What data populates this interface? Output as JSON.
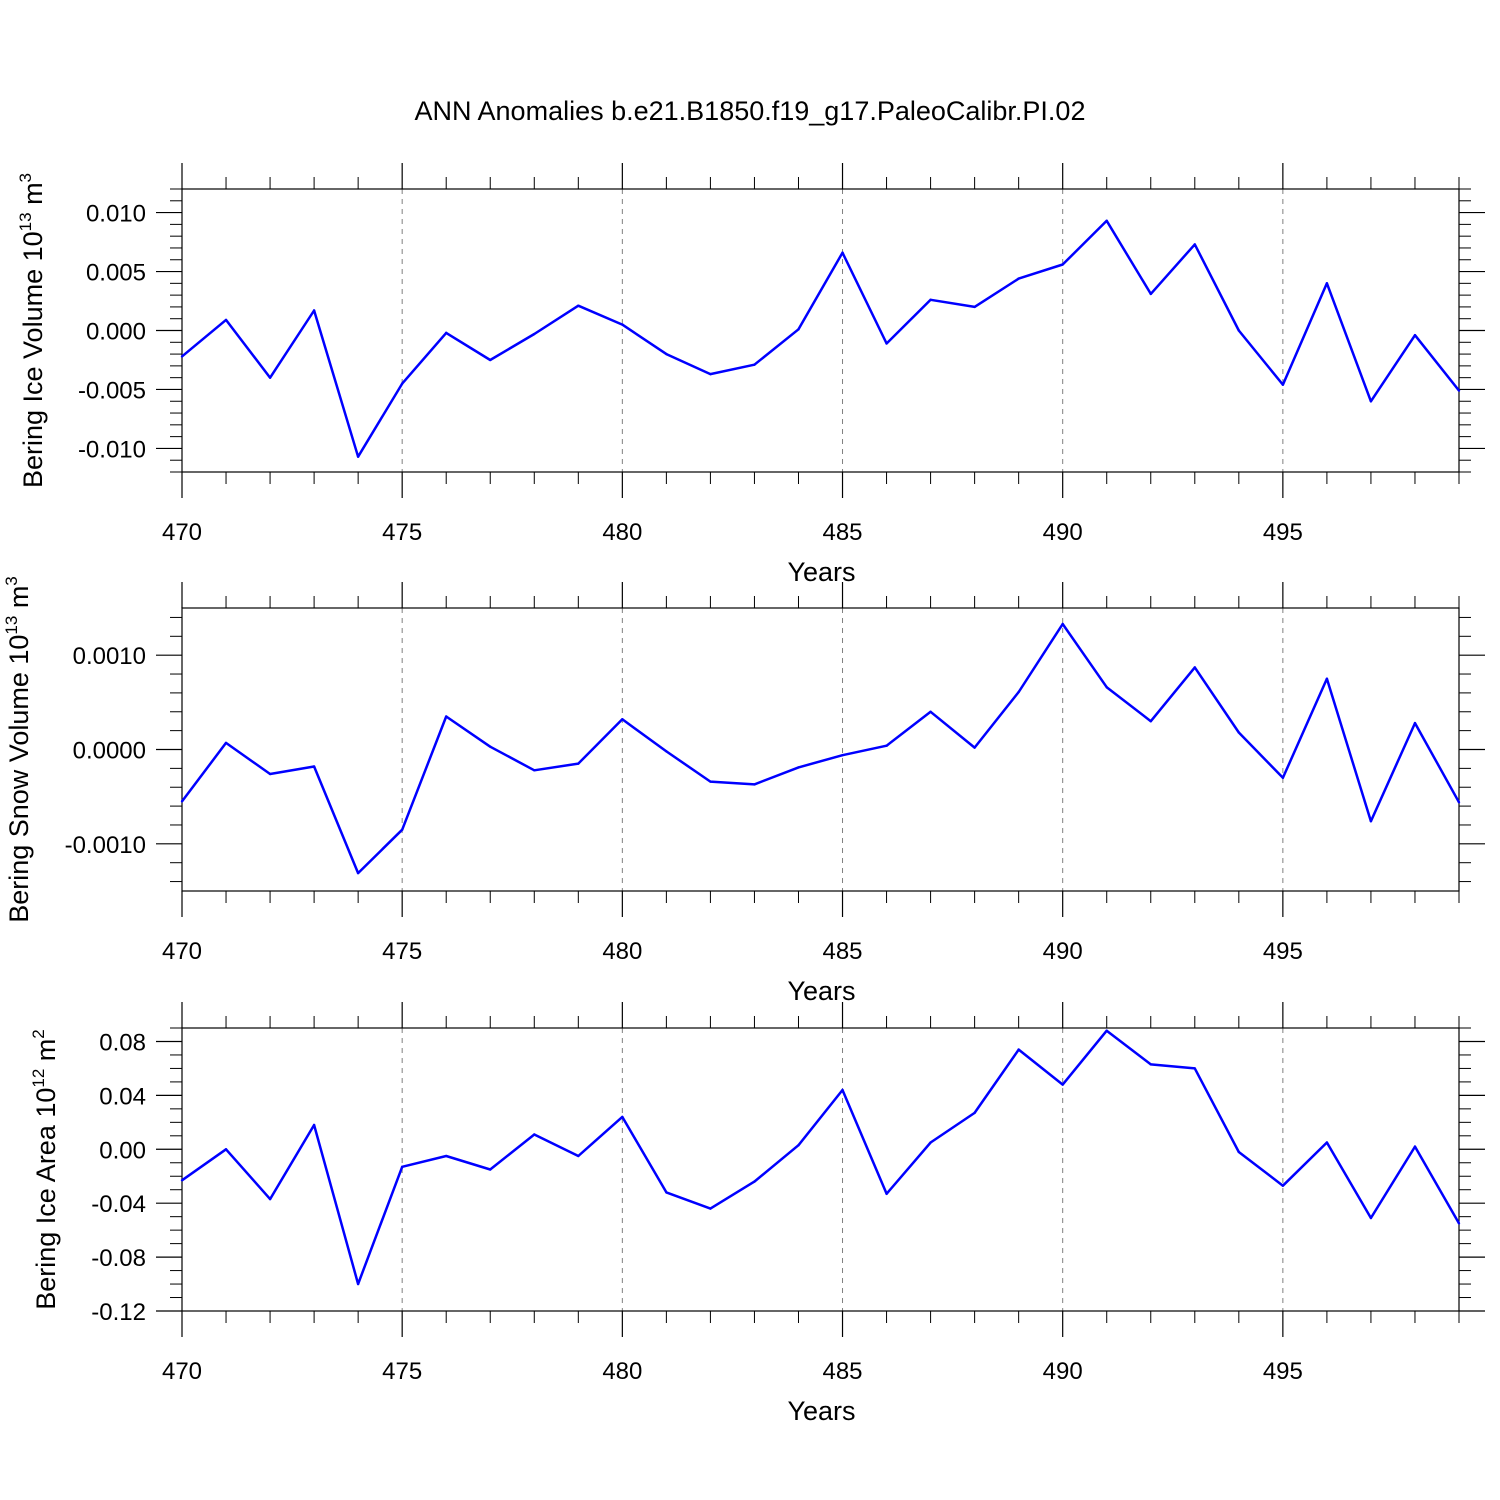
{
  "title": "ANN Anomalies b.e21.B1850.f19_g17.PaleoCalibr.PI.02",
  "colors": {
    "line": "#0000ff",
    "axis": "#000000",
    "grid": "#808080"
  },
  "chart_data": [
    {
      "type": "line",
      "ylabel_main": "Bering Ice Volume 10",
      "ylabel_exp": "13",
      "ylabel_unit": " m",
      "ylabel_unit_exp": "3",
      "xlabel": "Years",
      "xlim": [
        470,
        499
      ],
      "ylim": [
        -0.012,
        0.012
      ],
      "xticks": [
        470,
        475,
        480,
        485,
        490,
        495
      ],
      "xtick_labels": [
        "470",
        "475",
        "480",
        "485",
        "490",
        "495"
      ],
      "yticks": [
        -0.01,
        -0.005,
        0.0,
        0.005,
        0.01
      ],
      "ytick_labels": [
        "-0.010",
        "-0.005",
        "0.000",
        "0.005",
        "0.010"
      ],
      "yminor_step": 0.001,
      "grid": "vertical-dashed",
      "x": [
        470,
        471,
        472,
        473,
        474,
        475,
        476,
        477,
        478,
        479,
        480,
        481,
        482,
        483,
        484,
        485,
        486,
        487,
        488,
        489,
        490,
        491,
        492,
        493,
        494,
        495,
        496,
        497,
        498,
        499
      ],
      "values": [
        -0.0022,
        0.0009,
        -0.004,
        0.0017,
        -0.0107,
        -0.0045,
        -0.0002,
        -0.0025,
        -0.0003,
        0.0021,
        0.0005,
        -0.002,
        -0.0037,
        -0.0029,
        0.0001,
        0.0066,
        -0.0011,
        0.0026,
        0.002,
        0.0044,
        0.0056,
        0.0093,
        0.0031,
        0.0073,
        0.0,
        -0.0046,
        0.004,
        -0.006,
        -0.0004,
        -0.0051
      ]
    },
    {
      "type": "line",
      "ylabel_main": "Bering Snow Volume 10",
      "ylabel_exp": "13",
      "ylabel_unit": " m",
      "ylabel_unit_exp": "3",
      "xlabel": "Years",
      "xlim": [
        470,
        499
      ],
      "ylim": [
        -0.0015,
        0.0015
      ],
      "xticks": [
        470,
        475,
        480,
        485,
        490,
        495
      ],
      "xtick_labels": [
        "470",
        "475",
        "480",
        "485",
        "490",
        "495"
      ],
      "yticks": [
        -0.001,
        0.0,
        0.001
      ],
      "ytick_labels": [
        "-0.0010",
        "0.0000",
        "0.0010"
      ],
      "yminor_step": 0.0002,
      "grid": "vertical-dashed",
      "x": [
        470,
        471,
        472,
        473,
        474,
        475,
        476,
        477,
        478,
        479,
        480,
        481,
        482,
        483,
        484,
        485,
        486,
        487,
        488,
        489,
        490,
        491,
        492,
        493,
        494,
        495,
        496,
        497,
        498,
        499
      ],
      "values": [
        -0.00055,
        7e-05,
        -0.00026,
        -0.00018,
        -0.00131,
        -0.00085,
        0.00035,
        3e-05,
        -0.00022,
        -0.00015,
        0.00032,
        -2e-05,
        -0.00034,
        -0.00037,
        -0.00019,
        -6e-05,
        4e-05,
        0.0004,
        2e-05,
        0.00061,
        0.00133,
        0.00066,
        0.0003,
        0.00087,
        0.00018,
        -0.0003,
        0.00075,
        -0.00076,
        0.00028,
        -0.00056
      ]
    },
    {
      "type": "line",
      "ylabel_main": "Bering Ice Area 10",
      "ylabel_exp": "12",
      "ylabel_unit": " m",
      "ylabel_unit_exp": "2",
      "xlabel": "Years",
      "xlim": [
        470,
        499
      ],
      "ylim": [
        -0.12,
        0.09
      ],
      "xticks": [
        470,
        475,
        480,
        485,
        490,
        495
      ],
      "xtick_labels": [
        "470",
        "475",
        "480",
        "485",
        "490",
        "495"
      ],
      "yticks": [
        -0.12,
        -0.08,
        -0.04,
        0.0,
        0.04,
        0.08
      ],
      "ytick_labels": [
        "-0.12",
        "-0.08",
        "-0.04",
        "0.00",
        "0.04",
        "0.08"
      ],
      "yminor_step": 0.01,
      "grid": "vertical-dashed",
      "x": [
        470,
        471,
        472,
        473,
        474,
        475,
        476,
        477,
        478,
        479,
        480,
        481,
        482,
        483,
        484,
        485,
        486,
        487,
        488,
        489,
        490,
        491,
        492,
        493,
        494,
        495,
        496,
        497,
        498,
        499
      ],
      "values": [
        -0.023,
        0.0,
        -0.037,
        0.018,
        -0.1,
        -0.013,
        -0.005,
        -0.015,
        0.011,
        -0.005,
        0.024,
        -0.032,
        -0.044,
        -0.024,
        0.003,
        0.044,
        -0.033,
        0.005,
        0.027,
        0.074,
        0.048,
        0.088,
        0.063,
        0.06,
        -0.002,
        -0.027,
        0.005,
        -0.051,
        0.002,
        -0.055
      ]
    }
  ]
}
